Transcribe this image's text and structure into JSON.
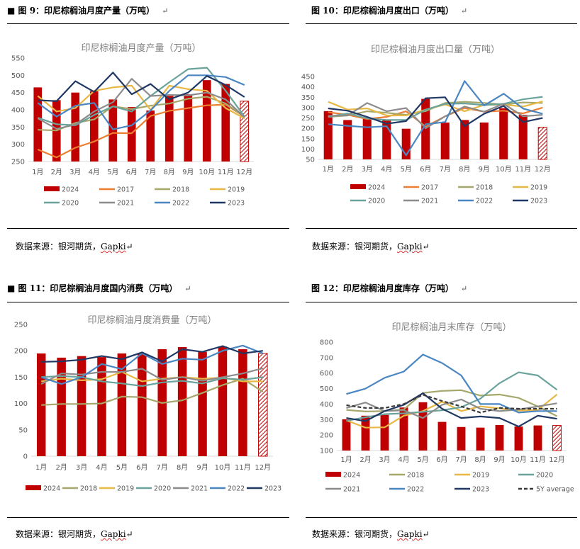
{
  "charts": [
    {
      "caption": "图 9：印尼棕榈油月度产量（万吨）",
      "source_prefix": "数据来源：银河期货，",
      "source_brand": "Gapki",
      "chart_data": {
        "type": "bar+line",
        "title": "印尼棕榈油月度产量（万吨）",
        "categories": [
          "1月",
          "2月",
          "3月",
          "4月",
          "5月",
          "6月",
          "7月",
          "8月",
          "9月",
          "10月",
          "11月",
          "12月"
        ],
        "ylim": [
          250,
          550
        ],
        "yticks": [
          250,
          300,
          350,
          400,
          450,
          500,
          550
        ],
        "legend_cols": 4,
        "bar": {
          "name": "2024",
          "color": "#C00000",
          "values": [
            465,
            428,
            450,
            454,
            430,
            408,
            398,
            440,
            445,
            486,
            475,
            425
          ]
        },
        "series": [
          {
            "name": "2017",
            "color": "#ED7D31",
            "values": [
              285,
              262,
              290,
              308,
              333,
              332,
              382,
              397,
              405,
              413,
              415,
              380
            ]
          },
          {
            "name": "2018",
            "color": "#A5A86A",
            "values": [
              342,
              340,
              362,
              372,
              410,
              402,
              412,
              418,
              432,
              438,
              418,
              380
            ]
          },
          {
            "name": "2019",
            "color": "#E7B845",
            "values": [
              440,
              395,
              405,
              455,
              465,
              470,
              400,
              470,
              460,
              455,
              405,
              375
            ]
          },
          {
            "name": "2020",
            "color": "#6AA39B",
            "values": [
              377,
              358,
              355,
              385,
              410,
              395,
              440,
              480,
              518,
              522,
              455,
              380
            ]
          },
          {
            "name": "2021",
            "color": "#8C8C8C",
            "values": [
              375,
              345,
              357,
              395,
              422,
              490,
              440,
              443,
              442,
              450,
              430,
              378
            ]
          },
          {
            "name": "2022",
            "color": "#4A86C2",
            "values": [
              420,
              380,
              412,
              420,
              343,
              355,
              398,
              455,
              500,
              500,
              495,
              472
            ]
          },
          {
            "name": "2023",
            "color": "#203864",
            "values": [
              428,
              425,
              483,
              452,
              508,
              445,
              475,
              430,
              450,
              498,
              472,
              437
            ]
          }
        ]
      }
    },
    {
      "caption": "图 10：印尼棕榈油月度出口（万吨）",
      "source_prefix": "数据来源：银河期货，",
      "source_brand": "Gapki",
      "chart_data": {
        "type": "bar+line",
        "title": "印尼棕榈油月度出口量（万吨）",
        "categories": [
          "1月",
          "2月",
          "3月",
          "4月",
          "5月",
          "6月",
          "7月",
          "8月",
          "9月",
          "10月",
          "11月",
          "12月"
        ],
        "ylim": [
          50,
          450
        ],
        "yticks": [
          50,
          100,
          150,
          200,
          250,
          300,
          350,
          400,
          450
        ],
        "legend_cols": 4,
        "bar": {
          "name": "2024",
          "color": "#C00000",
          "values": [
            283,
            240,
            252,
            240,
            198,
            342,
            228,
            240,
            228,
            297,
            265,
            205
          ]
        },
        "series": [
          {
            "name": "2017",
            "color": "#ED7D31",
            "values": [
              278,
              265,
              245,
              255,
              282,
              208,
              258,
              298,
              280,
              285,
              272,
              300
            ]
          },
          {
            "name": "2018",
            "color": "#A5A86A",
            "values": [
              255,
              262,
              282,
              275,
              265,
              283,
              322,
              328,
              322,
              315,
              325,
              322
            ]
          },
          {
            "name": "2019",
            "color": "#E7B845",
            "values": [
              328,
              290,
              296,
              262,
              262,
              290,
              315,
              282,
              313,
              314,
              305,
              330
            ]
          },
          {
            "name": "2020",
            "color": "#6AA39B",
            "values": [
              255,
              272,
              248,
              240,
              240,
              290,
              318,
              320,
              312,
              318,
              340,
              352
            ]
          },
          {
            "name": "2021",
            "color": "#8C8C8C",
            "values": [
              260,
              262,
              322,
              282,
              298,
              200,
              258,
              305,
              280,
              318,
              258,
              265
            ]
          },
          {
            "name": "2022",
            "color": "#4A86C2",
            "values": [
              220,
              212,
              205,
              210,
              70,
              220,
              230,
              428,
              310,
              367,
              295,
              270
            ]
          },
          {
            "name": "2023",
            "color": "#203864",
            "values": [
              296,
              285,
              255,
              222,
              235,
              345,
              350,
              210,
              270,
              308,
              230,
              250
            ]
          }
        ]
      }
    },
    {
      "caption": "图 11：印尼棕榈油月度国内消费（万吨）",
      "source_prefix": "数据来源：银河期货，",
      "source_brand": "Gapki",
      "chart_data": {
        "type": "bar+line",
        "title": "印尼棕榈油月度消费量（万吨）",
        "categories": [
          "1月",
          "2月",
          "3月",
          "4月",
          "5月",
          "6月",
          "7月",
          "8月",
          "9月",
          "10月",
          "11月",
          "12月"
        ],
        "ylim": [
          0,
          250
        ],
        "yticks": [
          0,
          50,
          100,
          150,
          200,
          250
        ],
        "legend_cols": 7,
        "bar": {
          "name": "2024",
          "color": "#C00000",
          "values": [
            195,
            187,
            190,
            188,
            195,
            194,
            203,
            207,
            198,
            208,
            203,
            195
          ]
        },
        "series": [
          {
            "name": "2018",
            "color": "#A5A86A",
            "values": [
              97,
              99,
              99,
              100,
              113,
              112,
              101,
              106,
              120,
              135,
              147,
              122
            ]
          },
          {
            "name": "2019",
            "color": "#E7B845",
            "values": [
              142,
              147,
              144,
              146,
              160,
              142,
              147,
              150,
              147,
              149,
              142,
              142
            ]
          },
          {
            "name": "2020",
            "color": "#6AA39B",
            "values": [
              150,
              152,
              150,
              142,
              138,
              133,
              140,
              143,
              138,
              148,
              145,
              150
            ]
          },
          {
            "name": "2021",
            "color": "#8C8C8C",
            "values": [
              137,
              157,
              155,
              160,
              160,
              166,
              145,
              150,
              143,
              150,
              157,
              167
            ]
          },
          {
            "name": "2022",
            "color": "#4A86C2",
            "values": [
              150,
              137,
              150,
              175,
              165,
              195,
              175,
              185,
              183,
              200,
              210,
              195
            ]
          },
          {
            "name": "2023",
            "color": "#203864",
            "values": [
              179,
              180,
              183,
              190,
              184,
              197,
              180,
              203,
              198,
              209,
              195,
              200
            ]
          }
        ]
      }
    },
    {
      "caption": "图 12：印尼棕榈油月度库存（万吨）",
      "source_prefix": "数据来源：银河期货，",
      "source_brand": "Gapki",
      "chart_data": {
        "type": "bar+line",
        "title": "印尼棕榈油月末库存（万吨）",
        "categories": [
          "1月",
          "2月",
          "3月",
          "4月",
          "5月",
          "6月",
          "7月",
          "8月",
          "9月",
          "10月",
          "11月",
          "12月"
        ],
        "ylim": [
          100,
          800
        ],
        "yticks": [
          100,
          200,
          300,
          400,
          500,
          600,
          700,
          800
        ],
        "legend_cols": 4,
        "bar": {
          "name": "2024",
          "color": "#C00000",
          "values": [
            302,
            325,
            330,
            378,
            412,
            285,
            252,
            248,
            265,
            255,
            262,
            262
          ]
        },
        "series": [
          {
            "name": "2018",
            "color": "#A5A86A",
            "values": [
              362,
              352,
              355,
              365,
              472,
              485,
              490,
              455,
              462,
              440,
              385,
              322
            ]
          },
          {
            "name": "2019",
            "color": "#E7B845",
            "values": [
              295,
              248,
              250,
              325,
              355,
              415,
              355,
              385,
              372,
              358,
              362,
              462
            ]
          },
          {
            "name": "2020",
            "color": "#6AA39B",
            "values": [
              292,
              315,
              335,
              340,
              350,
              360,
              380,
              435,
              535,
              605,
              585,
              492
            ]
          },
          {
            "name": "2021",
            "color": "#8C8C8C",
            "values": [
              375,
              410,
              355,
              360,
              310,
              395,
              430,
              370,
              355,
              365,
              385,
              405
            ]
          },
          {
            "name": "2022",
            "color": "#4A86C2",
            "values": [
              465,
              500,
              570,
              610,
              720,
              665,
              585,
              400,
              400,
              345,
              355,
              355
            ]
          },
          {
            "name": "2023",
            "color": "#203864",
            "values": [
              310,
              290,
              355,
              395,
              470,
              370,
              310,
              320,
              310,
              255,
              325,
              305
            ]
          },
          {
            "name": "5Y average",
            "color": "#3A3A3A",
            "dash": true,
            "values": [
              393,
              375,
              375,
              400,
              460,
              420,
              385,
              345,
              375,
              370,
              370,
              370
            ]
          }
        ]
      }
    }
  ]
}
